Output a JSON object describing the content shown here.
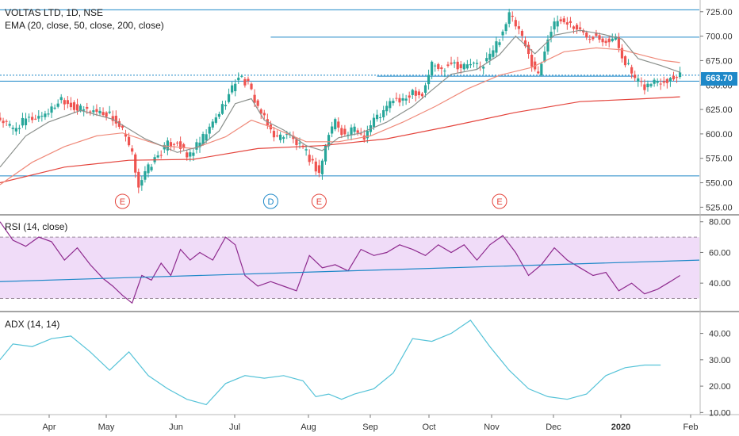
{
  "header": {
    "symbol_line": "VOLTAS LTD, 1D, NSE",
    "ema_line": "EMA (20, close, 50, close, 200, close)",
    "rsi_line": "RSI (14, close)",
    "adx_line": "ADX (14, 14)"
  },
  "colors": {
    "up": "#26a69a",
    "down": "#ef5350",
    "ema20": "#8a8f8b",
    "ema50": "#ef8a7a",
    "ema200": "#e4443c",
    "hline": "#1e88c8",
    "rsi": "#8e2a8e",
    "rsi_band": "#f0dcf8",
    "adx": "#56c3d8",
    "event_d": "#1e88c8",
    "event_e": "#e4443c"
  },
  "chart_data": [
    {
      "type": "candlestick",
      "title": "VOLTAS LTD, 1D, NSE",
      "indicators": [
        "EMA 20",
        "EMA 50",
        "EMA 200"
      ],
      "x_ticks": [
        "Apr",
        "May",
        "Jun",
        "Jul",
        "Aug",
        "Sep",
        "Oct",
        "Nov",
        "Dec",
        "2020",
        "Feb"
      ],
      "y_ticks": [
        525,
        550,
        575,
        600,
        625,
        650,
        675,
        700,
        725
      ],
      "ylim": [
        518,
        737
      ],
      "last_price": "663.70",
      "price_path": [
        {
          "x": 0,
          "y": 615
        },
        {
          "x": 4,
          "y": 605
        },
        {
          "x": 8,
          "y": 614
        },
        {
          "x": 12,
          "y": 618
        },
        {
          "x": 16,
          "y": 625
        },
        {
          "x": 19,
          "y": 637
        },
        {
          "x": 24,
          "y": 625
        },
        {
          "x": 29,
          "y": 624
        },
        {
          "x": 34,
          "y": 620
        },
        {
          "x": 38,
          "y": 603
        },
        {
          "x": 41,
          "y": 578
        },
        {
          "x": 43,
          "y": 548
        },
        {
          "x": 46,
          "y": 565
        },
        {
          "x": 49,
          "y": 578
        },
        {
          "x": 52,
          "y": 589
        },
        {
          "x": 55,
          "y": 593
        },
        {
          "x": 58,
          "y": 576
        },
        {
          "x": 62,
          "y": 591
        },
        {
          "x": 65,
          "y": 605
        },
        {
          "x": 68,
          "y": 622
        },
        {
          "x": 71,
          "y": 640
        },
        {
          "x": 74,
          "y": 660
        },
        {
          "x": 77,
          "y": 650
        },
        {
          "x": 80,
          "y": 628
        },
        {
          "x": 83,
          "y": 608
        },
        {
          "x": 86,
          "y": 596
        },
        {
          "x": 89,
          "y": 601
        },
        {
          "x": 92,
          "y": 590
        },
        {
          "x": 95,
          "y": 580
        },
        {
          "x": 97,
          "y": 570
        },
        {
          "x": 99,
          "y": 560
        },
        {
          "x": 102,
          "y": 600
        },
        {
          "x": 104,
          "y": 614
        },
        {
          "x": 107,
          "y": 598
        },
        {
          "x": 110,
          "y": 605
        },
        {
          "x": 113,
          "y": 598
        },
        {
          "x": 116,
          "y": 615
        },
        {
          "x": 119,
          "y": 622
        },
        {
          "x": 122,
          "y": 636
        },
        {
          "x": 125,
          "y": 632
        },
        {
          "x": 128,
          "y": 645
        },
        {
          "x": 131,
          "y": 640
        },
        {
          "x": 134,
          "y": 672
        },
        {
          "x": 137,
          "y": 665
        },
        {
          "x": 140,
          "y": 675
        },
        {
          "x": 143,
          "y": 668
        },
        {
          "x": 146,
          "y": 672
        },
        {
          "x": 149,
          "y": 668
        },
        {
          "x": 152,
          "y": 680
        },
        {
          "x": 155,
          "y": 698
        },
        {
          "x": 158,
          "y": 722
        },
        {
          "x": 161,
          "y": 705
        },
        {
          "x": 164,
          "y": 680
        },
        {
          "x": 167,
          "y": 660
        },
        {
          "x": 170,
          "y": 700
        },
        {
          "x": 173,
          "y": 716
        },
        {
          "x": 176,
          "y": 714
        },
        {
          "x": 179,
          "y": 708
        },
        {
          "x": 182,
          "y": 700
        },
        {
          "x": 185,
          "y": 702
        },
        {
          "x": 188,
          "y": 696
        },
        {
          "x": 191,
          "y": 697
        },
        {
          "x": 193,
          "y": 680
        },
        {
          "x": 195,
          "y": 669
        },
        {
          "x": 197,
          "y": 655
        },
        {
          "x": 200,
          "y": 648
        },
        {
          "x": 203,
          "y": 654
        },
        {
          "x": 206,
          "y": 655
        },
        {
          "x": 209,
          "y": 658
        },
        {
          "x": 211,
          "y": 663.7
        }
      ],
      "ema20": [
        {
          "x": 0,
          "y": 566
        },
        {
          "x": 8,
          "y": 598
        },
        {
          "x": 15,
          "y": 612
        },
        {
          "x": 25,
          "y": 624
        },
        {
          "x": 35,
          "y": 615
        },
        {
          "x": 45,
          "y": 595
        },
        {
          "x": 55,
          "y": 581
        },
        {
          "x": 62,
          "y": 587
        },
        {
          "x": 68,
          "y": 603
        },
        {
          "x": 73,
          "y": 631
        },
        {
          "x": 78,
          "y": 636
        },
        {
          "x": 82,
          "y": 614
        },
        {
          "x": 88,
          "y": 604
        },
        {
          "x": 95,
          "y": 588
        },
        {
          "x": 100,
          "y": 583
        },
        {
          "x": 105,
          "y": 596
        },
        {
          "x": 112,
          "y": 601
        },
        {
          "x": 120,
          "y": 612
        },
        {
          "x": 128,
          "y": 628
        },
        {
          "x": 133,
          "y": 642
        },
        {
          "x": 140,
          "y": 661
        },
        {
          "x": 148,
          "y": 666
        },
        {
          "x": 155,
          "y": 681
        },
        {
          "x": 160,
          "y": 700
        },
        {
          "x": 166,
          "y": 682
        },
        {
          "x": 172,
          "y": 701
        },
        {
          "x": 180,
          "y": 706
        },
        {
          "x": 187,
          "y": 702
        },
        {
          "x": 193,
          "y": 697
        },
        {
          "x": 198,
          "y": 677
        },
        {
          "x": 205,
          "y": 670
        },
        {
          "x": 211,
          "y": 663
        }
      ],
      "ema50": [
        {
          "x": 0,
          "y": 548
        },
        {
          "x": 10,
          "y": 571
        },
        {
          "x": 20,
          "y": 587
        },
        {
          "x": 30,
          "y": 598
        },
        {
          "x": 38,
          "y": 601
        },
        {
          "x": 50,
          "y": 588
        },
        {
          "x": 60,
          "y": 585
        },
        {
          "x": 70,
          "y": 597
        },
        {
          "x": 78,
          "y": 614
        },
        {
          "x": 85,
          "y": 606
        },
        {
          "x": 95,
          "y": 592
        },
        {
          "x": 105,
          "y": 592
        },
        {
          "x": 115,
          "y": 598
        },
        {
          "x": 125,
          "y": 612
        },
        {
          "x": 135,
          "y": 628
        },
        {
          "x": 145,
          "y": 646
        },
        {
          "x": 155,
          "y": 660
        },
        {
          "x": 165,
          "y": 668
        },
        {
          "x": 175,
          "y": 684
        },
        {
          "x": 185,
          "y": 688
        },
        {
          "x": 193,
          "y": 686
        },
        {
          "x": 200,
          "y": 680
        },
        {
          "x": 206,
          "y": 675
        },
        {
          "x": 211,
          "y": 673
        }
      ],
      "ema200": [
        {
          "x": 0,
          "y": 550
        },
        {
          "x": 20,
          "y": 566
        },
        {
          "x": 40,
          "y": 573
        },
        {
          "x": 60,
          "y": 574
        },
        {
          "x": 80,
          "y": 585
        },
        {
          "x": 100,
          "y": 588
        },
        {
          "x": 120,
          "y": 595
        },
        {
          "x": 140,
          "y": 608
        },
        {
          "x": 160,
          "y": 622
        },
        {
          "x": 180,
          "y": 633
        },
        {
          "x": 200,
          "y": 636
        },
        {
          "x": 211,
          "y": 638
        }
      ],
      "horizontal_levels": [
        {
          "y": 727,
          "x0": 0,
          "x1": 217,
          "style": "solid"
        },
        {
          "y": 699,
          "x0": 84,
          "x1": 217,
          "style": "solid"
        },
        {
          "y": 660,
          "x0": 0,
          "x1": 217,
          "style": "dotted"
        },
        {
          "y": 659,
          "x0": 117,
          "x1": 197,
          "style": "solid"
        },
        {
          "y": 654,
          "x0": 0,
          "x1": 217,
          "style": "solid"
        },
        {
          "y": 557,
          "x0": 0,
          "x1": 217,
          "style": "solid"
        }
      ],
      "event_markers": [
        {
          "label": "E",
          "x": 38
        },
        {
          "label": "D",
          "x": 84
        },
        {
          "label": "E",
          "x": 99
        },
        {
          "label": "E",
          "x": 155
        }
      ]
    },
    {
      "type": "line",
      "title": "RSI (14, close)",
      "y_ticks": [
        40,
        60,
        80
      ],
      "ylim": [
        22,
        84
      ],
      "band": [
        30,
        70
      ],
      "series": [
        {
          "name": "RSI",
          "values": [
            {
              "x": 0,
              "y": 80
            },
            {
              "x": 4,
              "y": 68
            },
            {
              "x": 8,
              "y": 64
            },
            {
              "x": 12,
              "y": 70
            },
            {
              "x": 16,
              "y": 67
            },
            {
              "x": 20,
              "y": 55
            },
            {
              "x": 24,
              "y": 63
            },
            {
              "x": 28,
              "y": 52
            },
            {
              "x": 32,
              "y": 43
            },
            {
              "x": 35,
              "y": 38
            },
            {
              "x": 38,
              "y": 32
            },
            {
              "x": 41,
              "y": 27
            },
            {
              "x": 44,
              "y": 45
            },
            {
              "x": 47,
              "y": 42
            },
            {
              "x": 50,
              "y": 53
            },
            {
              "x": 53,
              "y": 45
            },
            {
              "x": 56,
              "y": 62
            },
            {
              "x": 59,
              "y": 55
            },
            {
              "x": 62,
              "y": 60
            },
            {
              "x": 66,
              "y": 55
            },
            {
              "x": 70,
              "y": 70
            },
            {
              "x": 73,
              "y": 65
            },
            {
              "x": 76,
              "y": 45
            },
            {
              "x": 80,
              "y": 38
            },
            {
              "x": 84,
              "y": 41
            },
            {
              "x": 88,
              "y": 38
            },
            {
              "x": 92,
              "y": 35
            },
            {
              "x": 96,
              "y": 58
            },
            {
              "x": 100,
              "y": 50
            },
            {
              "x": 104,
              "y": 52
            },
            {
              "x": 108,
              "y": 48
            },
            {
              "x": 112,
              "y": 62
            },
            {
              "x": 116,
              "y": 58
            },
            {
              "x": 120,
              "y": 60
            },
            {
              "x": 124,
              "y": 65
            },
            {
              "x": 128,
              "y": 62
            },
            {
              "x": 132,
              "y": 58
            },
            {
              "x": 136,
              "y": 65
            },
            {
              "x": 140,
              "y": 60
            },
            {
              "x": 144,
              "y": 65
            },
            {
              "x": 148,
              "y": 55
            },
            {
              "x": 152,
              "y": 65
            },
            {
              "x": 156,
              "y": 71
            },
            {
              "x": 160,
              "y": 60
            },
            {
              "x": 164,
              "y": 45
            },
            {
              "x": 168,
              "y": 52
            },
            {
              "x": 172,
              "y": 63
            },
            {
              "x": 176,
              "y": 55
            },
            {
              "x": 180,
              "y": 50
            },
            {
              "x": 184,
              "y": 45
            },
            {
              "x": 188,
              "y": 47
            },
            {
              "x": 192,
              "y": 35
            },
            {
              "x": 196,
              "y": 40
            },
            {
              "x": 200,
              "y": 33
            },
            {
              "x": 204,
              "y": 36
            },
            {
              "x": 208,
              "y": 41
            },
            {
              "x": 211,
              "y": 45
            }
          ]
        }
      ],
      "trendline": {
        "x0": 0,
        "y0": 41,
        "x1": 217,
        "y1": 55
      }
    },
    {
      "type": "line",
      "title": "ADX (14, 14)",
      "y_ticks": [
        10,
        20,
        30,
        40
      ],
      "ylim": [
        9.5,
        48
      ],
      "series": [
        {
          "name": "ADX",
          "values": [
            {
              "x": 0,
              "y": 30
            },
            {
              "x": 4,
              "y": 36
            },
            {
              "x": 10,
              "y": 35
            },
            {
              "x": 16,
              "y": 38
            },
            {
              "x": 22,
              "y": 39
            },
            {
              "x": 28,
              "y": 33
            },
            {
              "x": 34,
              "y": 26
            },
            {
              "x": 40,
              "y": 33
            },
            {
              "x": 46,
              "y": 24
            },
            {
              "x": 52,
              "y": 19
            },
            {
              "x": 58,
              "y": 15
            },
            {
              "x": 64,
              "y": 13
            },
            {
              "x": 70,
              "y": 21
            },
            {
              "x": 76,
              "y": 24
            },
            {
              "x": 82,
              "y": 23
            },
            {
              "x": 88,
              "y": 24
            },
            {
              "x": 94,
              "y": 22
            },
            {
              "x": 98,
              "y": 16
            },
            {
              "x": 102,
              "y": 17
            },
            {
              "x": 106,
              "y": 15
            },
            {
              "x": 110,
              "y": 17
            },
            {
              "x": 116,
              "y": 19
            },
            {
              "x": 122,
              "y": 25
            },
            {
              "x": 128,
              "y": 38
            },
            {
              "x": 134,
              "y": 37
            },
            {
              "x": 140,
              "y": 40
            },
            {
              "x": 146,
              "y": 45
            },
            {
              "x": 152,
              "y": 35
            },
            {
              "x": 158,
              "y": 26
            },
            {
              "x": 164,
              "y": 19
            },
            {
              "x": 170,
              "y": 16
            },
            {
              "x": 176,
              "y": 15
            },
            {
              "x": 182,
              "y": 17
            },
            {
              "x": 188,
              "y": 24
            },
            {
              "x": 194,
              "y": 27
            },
            {
              "x": 200,
              "y": 28
            },
            {
              "x": 205,
              "y": 28
            }
          ]
        }
      ]
    }
  ]
}
